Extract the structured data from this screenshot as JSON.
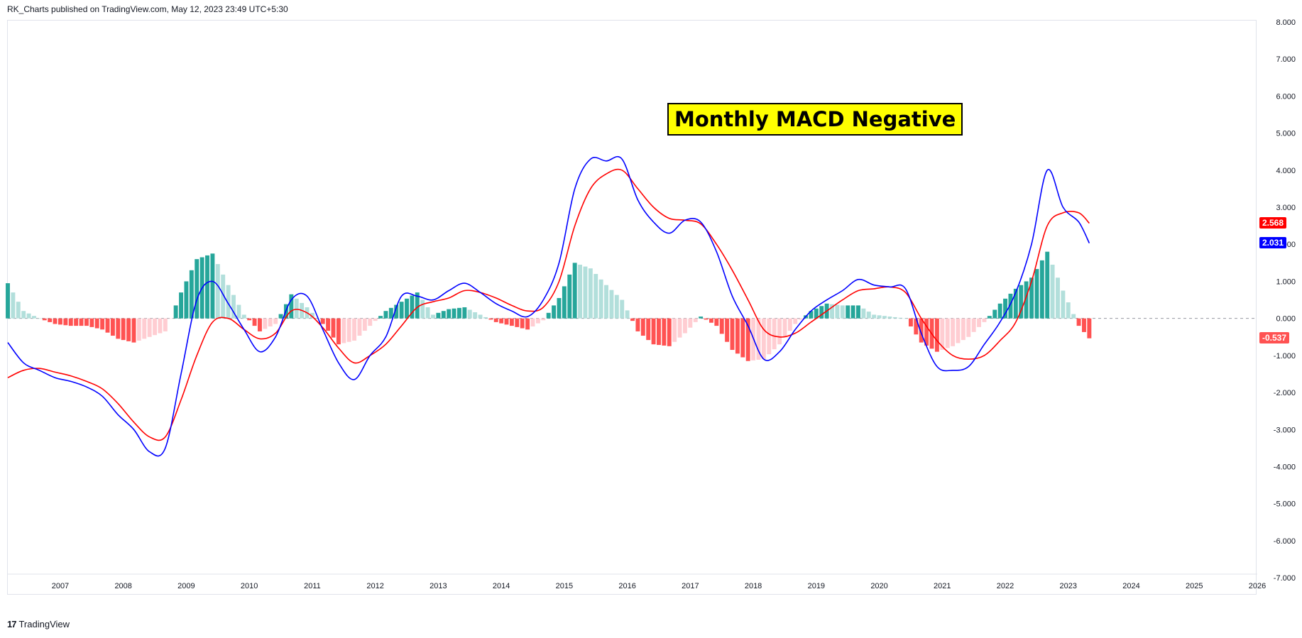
{
  "header": {
    "published_text": "RK_Charts published on TradingView.com, May 12, 2023 23:49 UTC+5:30"
  },
  "footer": {
    "logo_icon": "tradingview-logo-icon",
    "brand": "TradingView"
  },
  "annotation": {
    "text": "Monthly MACD Negative",
    "background": "#ffff00"
  },
  "colors": {
    "macd_line": "#0000ff",
    "signal_line": "#ff0000",
    "hist_pos_rising": "#26a69a",
    "hist_pos_falling": "#b2dfdb",
    "hist_neg_falling": "#ff5252",
    "hist_neg_rising": "#ffcdd2"
  },
  "price_tags": {
    "signal": {
      "text": "2.568",
      "color": "#ff0000"
    },
    "macd": {
      "text": "2.031",
      "color": "#0000ff"
    },
    "histogram": {
      "text": "-0.537",
      "color": "#ff5252"
    }
  },
  "chart_data": {
    "type": "line",
    "title": "",
    "x_axis": {
      "ticks": [
        "2007",
        "2008",
        "2009",
        "2010",
        "2011",
        "2012",
        "2013",
        "2014",
        "2015",
        "2016",
        "2017",
        "2018",
        "2019",
        "2020",
        "2021",
        "2022",
        "2023",
        "2024",
        "2025",
        "2026"
      ],
      "range": [
        "2006-03",
        "2026-01"
      ]
    },
    "y_axis": {
      "ticks": [
        "8.000",
        "7.000",
        "6.000",
        "5.000",
        "4.000",
        "3.000",
        "2.000",
        "1.000",
        "0.000",
        "-1.000",
        "-2.000",
        "-3.000",
        "-4.000",
        "-5.000",
        "-6.000",
        "-7.000"
      ],
      "range": [
        -7.4,
        8.0
      ],
      "position": "right"
    },
    "zero_line": true,
    "grid": false,
    "series": [
      {
        "role": "macd",
        "type": "line",
        "points": [
          [
            "2006-03",
            -0.65
          ],
          [
            "2006-06",
            -1.2
          ],
          [
            "2006-09",
            -1.4
          ],
          [
            "2006-12",
            -1.6
          ],
          [
            "2007-03",
            -1.7
          ],
          [
            "2007-06",
            -1.85
          ],
          [
            "2007-09",
            -2.1
          ],
          [
            "2007-12",
            -2.6
          ],
          [
            "2008-03",
            -3.0
          ],
          [
            "2008-06",
            -3.6
          ],
          [
            "2008-09",
            -3.5
          ],
          [
            "2008-12",
            -1.5
          ],
          [
            "2009-03",
            0.5
          ],
          [
            "2009-06",
            1.0
          ],
          [
            "2009-09",
            0.4
          ],
          [
            "2009-12",
            -0.3
          ],
          [
            "2010-03",
            -0.9
          ],
          [
            "2010-06",
            -0.5
          ],
          [
            "2010-09",
            0.5
          ],
          [
            "2010-12",
            0.6
          ],
          [
            "2011-03",
            -0.3
          ],
          [
            "2011-06",
            -1.2
          ],
          [
            "2011-09",
            -1.65
          ],
          [
            "2011-12",
            -1.0
          ],
          [
            "2012-03",
            -0.5
          ],
          [
            "2012-06",
            0.6
          ],
          [
            "2012-09",
            0.6
          ],
          [
            "2012-12",
            0.5
          ],
          [
            "2013-03",
            0.75
          ],
          [
            "2013-06",
            0.95
          ],
          [
            "2013-09",
            0.7
          ],
          [
            "2013-12",
            0.4
          ],
          [
            "2014-03",
            0.2
          ],
          [
            "2014-06",
            0.05
          ],
          [
            "2014-09",
            0.5
          ],
          [
            "2014-12",
            1.5
          ],
          [
            "2015-03",
            3.5
          ],
          [
            "2015-06",
            4.3
          ],
          [
            "2015-09",
            4.25
          ],
          [
            "2015-12",
            4.3
          ],
          [
            "2016-03",
            3.2
          ],
          [
            "2016-06",
            2.6
          ],
          [
            "2016-09",
            2.3
          ],
          [
            "2016-12",
            2.65
          ],
          [
            "2017-03",
            2.6
          ],
          [
            "2017-06",
            1.8
          ],
          [
            "2017-09",
            0.6
          ],
          [
            "2017-12",
            -0.2
          ],
          [
            "2018-03",
            -1.1
          ],
          [
            "2018-06",
            -0.9
          ],
          [
            "2018-09",
            -0.3
          ],
          [
            "2018-12",
            0.2
          ],
          [
            "2019-03",
            0.5
          ],
          [
            "2019-06",
            0.75
          ],
          [
            "2019-09",
            1.05
          ],
          [
            "2019-12",
            0.9
          ],
          [
            "2020-03",
            0.85
          ],
          [
            "2020-06",
            0.8
          ],
          [
            "2020-09",
            -0.4
          ],
          [
            "2020-12",
            -1.3
          ],
          [
            "2021-03",
            -1.4
          ],
          [
            "2021-06",
            -1.3
          ],
          [
            "2021-09",
            -0.7
          ],
          [
            "2021-12",
            -0.1
          ],
          [
            "2022-03",
            0.7
          ],
          [
            "2022-06",
            2.0
          ],
          [
            "2022-09",
            4.0
          ],
          [
            "2022-12",
            3.0
          ],
          [
            "2023-03",
            2.6
          ],
          [
            "2023-05",
            2.031
          ]
        ]
      },
      {
        "role": "signal",
        "type": "line",
        "points": [
          [
            "2006-03",
            -1.6
          ],
          [
            "2006-06",
            -1.4
          ],
          [
            "2006-09",
            -1.35
          ],
          [
            "2006-12",
            -1.45
          ],
          [
            "2007-03",
            -1.55
          ],
          [
            "2007-06",
            -1.7
          ],
          [
            "2007-09",
            -1.9
          ],
          [
            "2007-12",
            -2.3
          ],
          [
            "2008-03",
            -2.8
          ],
          [
            "2008-06",
            -3.2
          ],
          [
            "2008-09",
            -3.2
          ],
          [
            "2008-12",
            -2.2
          ],
          [
            "2009-03",
            -1.0
          ],
          [
            "2009-06",
            -0.1
          ],
          [
            "2009-09",
            0.0
          ],
          [
            "2009-12",
            -0.3
          ],
          [
            "2010-03",
            -0.55
          ],
          [
            "2010-06",
            -0.4
          ],
          [
            "2010-09",
            0.2
          ],
          [
            "2010-12",
            0.15
          ],
          [
            "2011-03",
            -0.25
          ],
          [
            "2011-06",
            -0.8
          ],
          [
            "2011-09",
            -1.2
          ],
          [
            "2011-12",
            -1.0
          ],
          [
            "2012-03",
            -0.7
          ],
          [
            "2012-06",
            -0.2
          ],
          [
            "2012-09",
            0.3
          ],
          [
            "2012-12",
            0.45
          ],
          [
            "2013-03",
            0.55
          ],
          [
            "2013-06",
            0.75
          ],
          [
            "2013-09",
            0.7
          ],
          [
            "2013-12",
            0.55
          ],
          [
            "2014-03",
            0.35
          ],
          [
            "2014-06",
            0.2
          ],
          [
            "2014-09",
            0.3
          ],
          [
            "2014-12",
            1.0
          ],
          [
            "2015-03",
            2.5
          ],
          [
            "2015-06",
            3.5
          ],
          [
            "2015-09",
            3.9
          ],
          [
            "2015-12",
            4.0
          ],
          [
            "2016-03",
            3.5
          ],
          [
            "2016-06",
            3.0
          ],
          [
            "2016-09",
            2.7
          ],
          [
            "2016-12",
            2.65
          ],
          [
            "2017-03",
            2.55
          ],
          [
            "2017-06",
            2.0
          ],
          [
            "2017-09",
            1.3
          ],
          [
            "2017-12",
            0.5
          ],
          [
            "2018-03",
            -0.3
          ],
          [
            "2018-06",
            -0.5
          ],
          [
            "2018-09",
            -0.4
          ],
          [
            "2018-12",
            -0.1
          ],
          [
            "2019-03",
            0.2
          ],
          [
            "2019-06",
            0.5
          ],
          [
            "2019-09",
            0.75
          ],
          [
            "2019-12",
            0.8
          ],
          [
            "2020-03",
            0.85
          ],
          [
            "2020-06",
            0.7
          ],
          [
            "2020-09",
            0.0
          ],
          [
            "2020-12",
            -0.6
          ],
          [
            "2021-03",
            -1.0
          ],
          [
            "2021-06",
            -1.1
          ],
          [
            "2021-09",
            -1.0
          ],
          [
            "2021-12",
            -0.6
          ],
          [
            "2022-03",
            -0.1
          ],
          [
            "2022-06",
            1.0
          ],
          [
            "2022-09",
            2.5
          ],
          [
            "2022-12",
            2.85
          ],
          [
            "2023-03",
            2.85
          ],
          [
            "2023-05",
            2.568
          ]
        ]
      },
      {
        "role": "histogram",
        "type": "bar",
        "points": [
          [
            "2006-03",
            0.95
          ],
          [
            "2006-06",
            0.2
          ],
          [
            "2006-09",
            0.0
          ],
          [
            "2006-12",
            -0.15
          ],
          [
            "2007-03",
            -0.2
          ],
          [
            "2007-06",
            -0.2
          ],
          [
            "2007-09",
            -0.3
          ],
          [
            "2007-12",
            -0.55
          ],
          [
            "2008-03",
            -0.65
          ],
          [
            "2008-06",
            -0.5
          ],
          [
            "2008-09",
            -0.35
          ],
          [
            "2008-12",
            0.7
          ],
          [
            "2009-03",
            1.6
          ],
          [
            "2009-06",
            1.75
          ],
          [
            "2009-09",
            0.9
          ],
          [
            "2009-12",
            0.1
          ],
          [
            "2010-03",
            -0.35
          ],
          [
            "2010-06",
            -0.15
          ],
          [
            "2010-09",
            0.65
          ],
          [
            "2010-12",
            0.3
          ],
          [
            "2011-03",
            -0.15
          ],
          [
            "2011-06",
            -0.7
          ],
          [
            "2011-09",
            -0.6
          ],
          [
            "2011-12",
            -0.2
          ],
          [
            "2012-03",
            0.2
          ],
          [
            "2012-06",
            0.45
          ],
          [
            "2012-09",
            0.7
          ],
          [
            "2012-12",
            0.1
          ],
          [
            "2013-03",
            0.25
          ],
          [
            "2013-06",
            0.3
          ],
          [
            "2013-09",
            0.1
          ],
          [
            "2013-12",
            -0.1
          ],
          [
            "2014-03",
            -0.2
          ],
          [
            "2014-06",
            -0.3
          ],
          [
            "2014-09",
            -0.05
          ],
          [
            "2014-12",
            0.55
          ],
          [
            "2015-03",
            1.5
          ],
          [
            "2015-06",
            1.35
          ],
          [
            "2015-09",
            0.9
          ],
          [
            "2015-12",
            0.5
          ],
          [
            "2016-03",
            -0.35
          ],
          [
            "2016-06",
            -0.7
          ],
          [
            "2016-09",
            -0.75
          ],
          [
            "2016-12",
            -0.4
          ],
          [
            "2017-03",
            0.05
          ],
          [
            "2017-06",
            -0.2
          ],
          [
            "2017-09",
            -0.85
          ],
          [
            "2017-12",
            -1.15
          ],
          [
            "2018-03",
            -1.1
          ],
          [
            "2018-06",
            -0.7
          ],
          [
            "2018-09",
            -0.15
          ],
          [
            "2018-12",
            0.2
          ],
          [
            "2019-03",
            0.4
          ],
          [
            "2019-06",
            0.35
          ],
          [
            "2019-09",
            0.35
          ],
          [
            "2019-12",
            0.1
          ],
          [
            "2020-03",
            0.05
          ],
          [
            "2020-06",
            0.0
          ],
          [
            "2020-09",
            -0.65
          ],
          [
            "2020-12",
            -0.9
          ],
          [
            "2021-03",
            -0.75
          ],
          [
            "2021-06",
            -0.5
          ],
          [
            "2021-09",
            -0.1
          ],
          [
            "2021-12",
            0.4
          ],
          [
            "2022-03",
            0.8
          ],
          [
            "2022-06",
            1.1
          ],
          [
            "2022-09",
            1.8
          ],
          [
            "2022-12",
            0.75
          ],
          [
            "2023-03",
            -0.2
          ],
          [
            "2023-05",
            -0.537
          ]
        ]
      }
    ]
  }
}
